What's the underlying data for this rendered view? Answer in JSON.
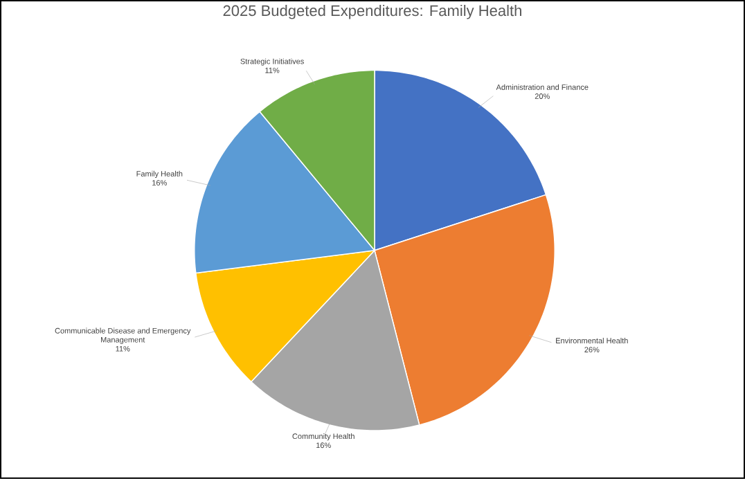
{
  "chart_data": {
    "type": "pie",
    "title": "2025 Budgeted Expenditures: Family Health",
    "categories": [
      "Administration and Finance",
      "Environmental Health",
      "Community Health",
      "Communicable Disease and Emergency Management",
      "Family Health",
      "Strategic Initiatives"
    ],
    "values": [
      20,
      26,
      16,
      11,
      16,
      11
    ],
    "value_labels": [
      "20%",
      "26%",
      "16%",
      "11%",
      "16%",
      "11%"
    ],
    "colors": [
      "#4472c4",
      "#ed7d31",
      "#a5a5a5",
      "#ffc000",
      "#5b9bd5",
      "#70ad47"
    ]
  }
}
